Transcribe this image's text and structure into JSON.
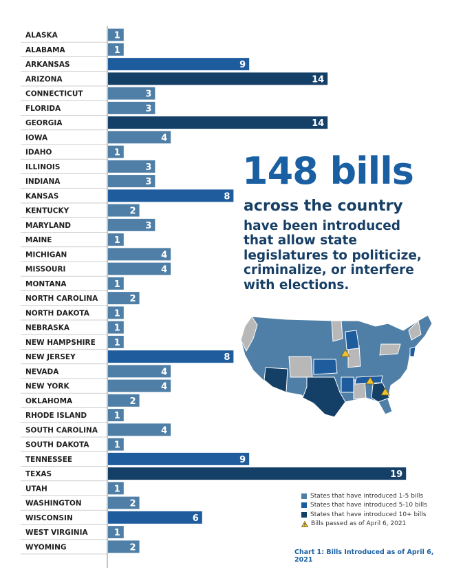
{
  "chart_data": {
    "type": "bar",
    "orientation": "horizontal",
    "categories": [
      "ALASKA",
      "ALABAMA",
      "ARKANSAS",
      "ARIZONA",
      "CONNECTICUT",
      "FLORIDA",
      "GEORGIA",
      "IOWA",
      "IDAHO",
      "ILLINOIS",
      "INDIANA",
      "KANSAS",
      "KENTUCKY",
      "MARYLAND",
      "MAINE",
      "MICHIGAN",
      "MISSOURI",
      "MONTANA",
      "NORTH CAROLINA",
      "NORTH DAKOTA",
      "NEBRASKA",
      "NEW HAMPSHIRE",
      "NEW JERSEY",
      "NEVADA",
      "NEW YORK",
      "OKLAHOMA",
      "RHODE ISLAND",
      "SOUTH CAROLINA",
      "SOUTH DAKOTA",
      "TENNESSEE",
      "TEXAS",
      "UTAH",
      "WASHINGTON",
      "WISCONSIN",
      "WEST VIRGINIA",
      "WYOMING"
    ],
    "values": [
      1,
      1,
      9,
      14,
      3,
      3,
      14,
      4,
      1,
      3,
      3,
      8,
      2,
      3,
      1,
      4,
      4,
      1,
      2,
      1,
      1,
      1,
      8,
      4,
      4,
      2,
      1,
      4,
      1,
      9,
      19,
      1,
      2,
      6,
      1,
      2
    ],
    "xlim": [
      0,
      20
    ],
    "title": "",
    "xlabel": "",
    "ylabel": "",
    "grid": false
  },
  "headline": {
    "big": "148 bills",
    "sub": "across the country",
    "body": [
      "have been introduced",
      "that allow state",
      "legislatures to politicize,",
      "criminalize, or interfere",
      "with elections."
    ]
  },
  "legend": {
    "items": [
      {
        "label": "States that have introduced 1-5 bills",
        "color": "#4f7fa6"
      },
      {
        "label": "States that have introduced 5-10 bills",
        "color": "#1e5c9e"
      },
      {
        "label": "States that have introduced 10+ bills",
        "color": "#143f66"
      }
    ],
    "passed_label": "Bills passed as of April 6, 2021",
    "passed_color": "#f2c12e"
  },
  "caption": "Chart 1: Bills Introduced as of April 6, 2021",
  "colors": {
    "low": "#4f7fa6",
    "mid": "#1e5c9e",
    "high": "#143f66",
    "none": "#b8b8b8",
    "grid_line": "#bbbbbb"
  }
}
